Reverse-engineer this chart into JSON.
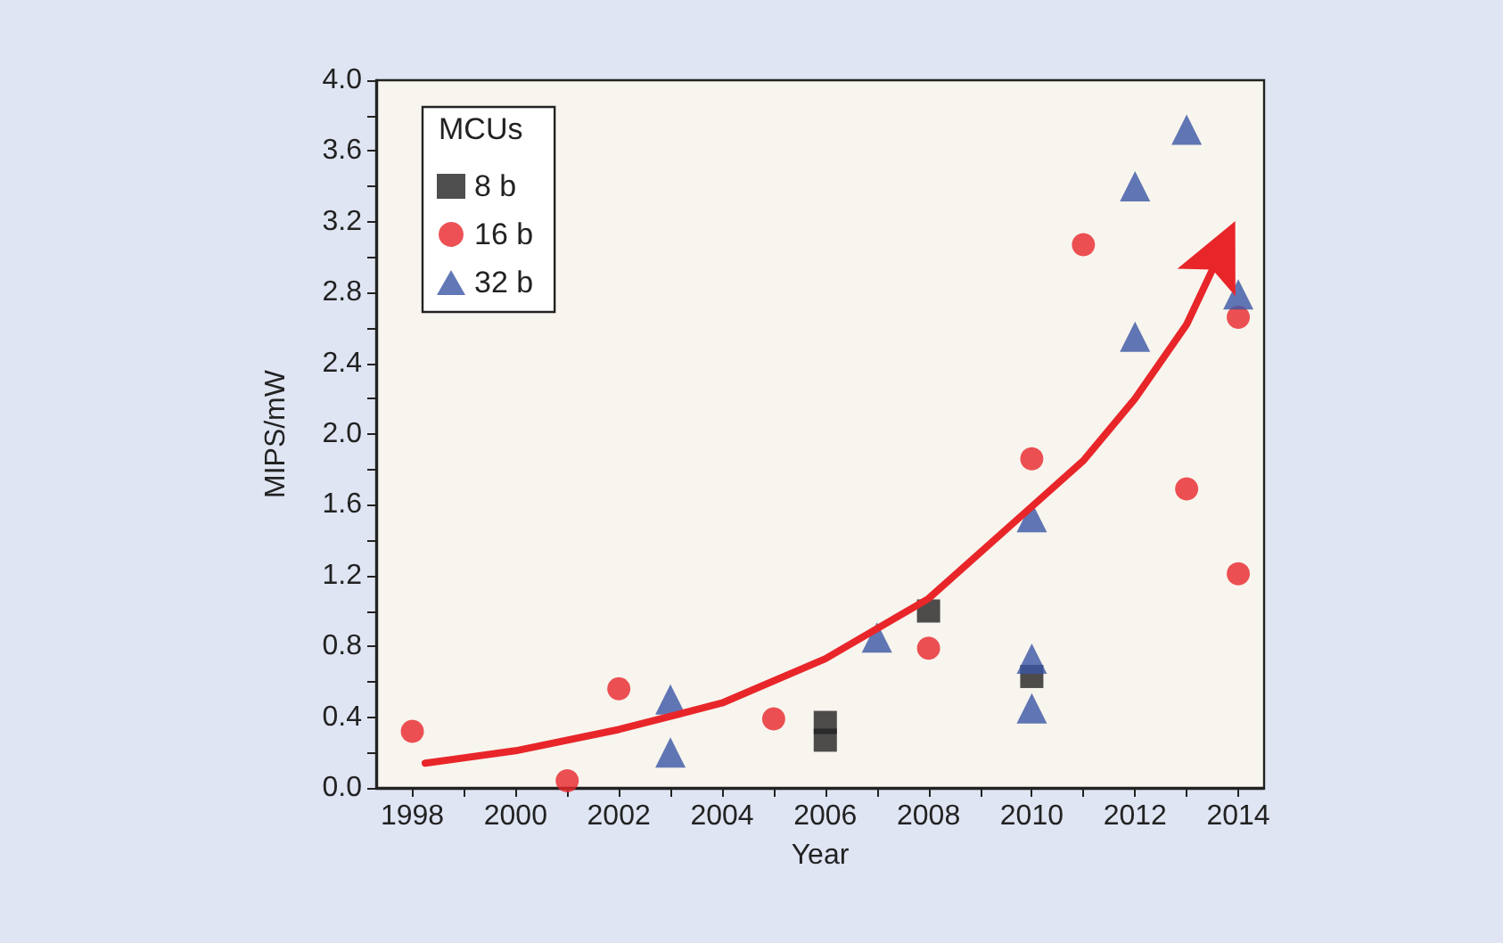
{
  "chart_data": {
    "type": "scatter",
    "xlabel": "Year",
    "ylabel": "MIPS/mW",
    "legend_title": "MCUs",
    "legend": "top left",
    "grid": false,
    "xlim": [
      1997.3,
      2014.5
    ],
    "ylim": [
      0,
      4.0
    ],
    "xticks": [
      1998,
      {
        "value": 1999,
        "label": null
      },
      2000,
      {
        "value": 2001,
        "label": null
      },
      2002,
      {
        "value": 2003,
        "label": null
      },
      2004,
      {
        "value": 2005,
        "label": null
      },
      2006,
      {
        "value": 2007,
        "label": null
      },
      2008,
      {
        "value": 2009,
        "label": null
      },
      2010,
      {
        "value": 2011,
        "label": null
      },
      2012,
      {
        "value": 2013,
        "label": null
      },
      2014
    ],
    "yticks": [
      {
        "value": 0,
        "label": "0.0"
      },
      {
        "value": 0.2,
        "label": null
      },
      {
        "value": 0.4,
        "label": "0.4"
      },
      {
        "value": 0.6,
        "label": null
      },
      {
        "value": 0.8,
        "label": "0.8"
      },
      {
        "value": 1.0,
        "label": null
      },
      {
        "value": 1.2,
        "label": "1.2"
      },
      {
        "value": 1.4,
        "label": null
      },
      {
        "value": 1.6,
        "label": "1.6"
      },
      {
        "value": 1.8,
        "label": null
      },
      {
        "value": 2.0,
        "label": "2.0"
      },
      {
        "value": 2.2,
        "label": null
      },
      {
        "value": 2.4,
        "label": "2.4"
      },
      {
        "value": 2.6,
        "label": null
      },
      {
        "value": 2.8,
        "label": "2.8"
      },
      {
        "value": 3.0,
        "label": null
      },
      {
        "value": 3.2,
        "label": "3.2"
      },
      {
        "value": 3.4,
        "label": null
      },
      {
        "value": 3.6,
        "label": "3.6"
      },
      {
        "value": 3.8,
        "label": null
      },
      {
        "value": 4.0,
        "label": "4.0"
      }
    ],
    "series": [
      {
        "type": "line",
        "color": "#e8262a",
        "marker": "none",
        "line_style": "solid",
        "x": [
          1998.25,
          2000,
          2002,
          2004,
          2006,
          2008,
          2010,
          2011,
          2012,
          2013,
          2013.5
        ],
        "values": [
          0.14,
          0.21,
          0.33,
          0.48,
          0.73,
          1.07,
          1.59,
          1.85,
          2.2,
          2.62,
          2.93
        ]
      },
      {
        "name": "8 b",
        "color": "#222222",
        "marker": "square",
        "x": [
          2006,
          2006,
          2008,
          2010
        ],
        "values": [
          0.37,
          0.27,
          1.0,
          0.63
        ]
      },
      {
        "name": "16 b",
        "color": "#e8262a",
        "marker": "circle",
        "x": [
          1998,
          2001,
          2002,
          2005,
          2008,
          2010,
          2011,
          2013,
          2014,
          2014
        ],
        "values": [
          0.32,
          0.04,
          0.56,
          0.39,
          0.79,
          1.86,
          3.07,
          1.69,
          1.21,
          2.66
        ]
      },
      {
        "name": "32 b",
        "color": "#3a55a4",
        "marker": "triangle",
        "x": [
          2003,
          2003,
          2007,
          2010,
          2010,
          2010,
          2012,
          2012,
          2013,
          2014
        ],
        "values": [
          0.5,
          0.2,
          0.85,
          1.53,
          0.73,
          0.45,
          3.4,
          2.55,
          3.72,
          2.79
        ]
      }
    ]
  }
}
